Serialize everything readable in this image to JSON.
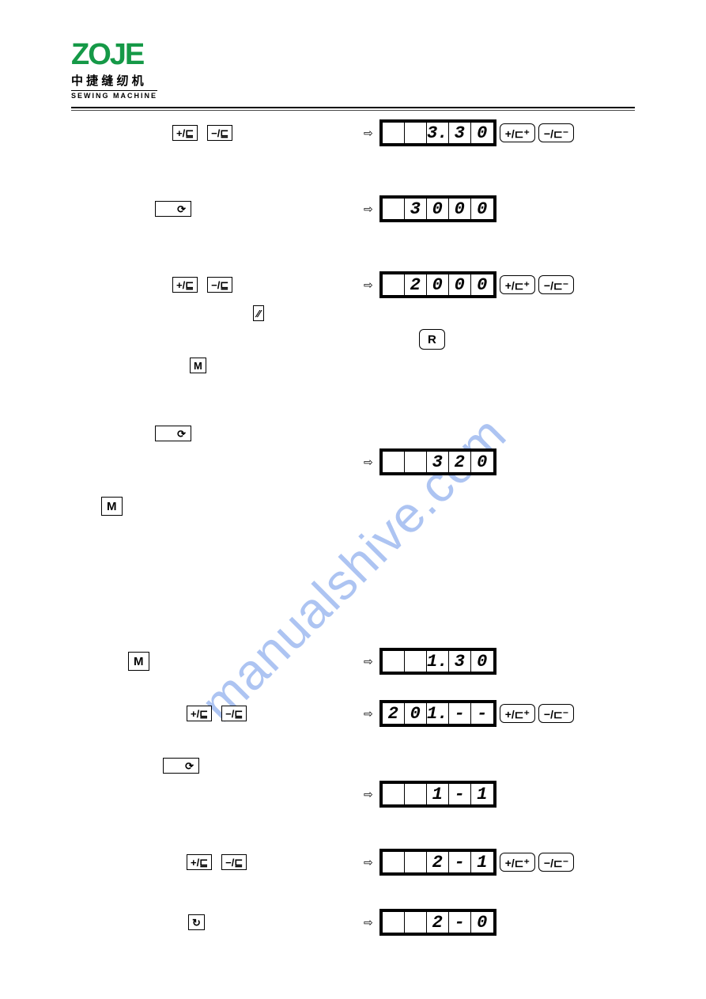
{
  "brand": {
    "name": "ZOJE",
    "color": "#159947",
    "cn": "中 捷 缝 纫 机",
    "en": "SEWING MACHINE"
  },
  "watermark": {
    "text": "manualshive.com",
    "color": "rgba(40,100,220,0.38)"
  },
  "symbols": {
    "plus_small": "+/⊑",
    "minus_small": "−/⊑",
    "plus_btn": "+/⊏⁺",
    "minus_btn": "−/⊏⁻",
    "slash": "⁄⁄",
    "M": "M",
    "R": "R",
    "power": "⟳",
    "reload": "↻",
    "arrow": "⇨"
  },
  "rows": [
    {
      "left_buttons": [
        "plus_small",
        "minus_small"
      ],
      "left_indent": 128,
      "lcd": [
        " ",
        " ",
        "3.",
        "3",
        "0"
      ],
      "right": [
        "plus_btn",
        "minus_btn"
      ]
    },
    {
      "spacer": 60
    },
    {
      "left_buttons_wide": "power",
      "left_indent": 106,
      "lcd": [
        " ",
        "3",
        "0",
        "0",
        "0"
      ],
      "right": []
    },
    {
      "spacer": 60
    },
    {
      "left_buttons": [
        "plus_small",
        "minus_small"
      ],
      "left_indent": 128,
      "lcd": [
        " ",
        "2",
        "0",
        "0",
        "0"
      ],
      "right": [
        "plus_btn",
        "minus_btn"
      ]
    },
    {
      "left_extra_slash": true,
      "left_indent": 230,
      "r_button_below": "R"
    },
    {
      "left_buttons": [
        "M"
      ],
      "left_indent": 150,
      "lcd": null
    },
    {
      "spacer": 50
    },
    {
      "left_buttons_wide": "power",
      "left_indent": 106,
      "lcd": null
    },
    {
      "lcd_only": [
        " ",
        " ",
        "3",
        "2",
        "0"
      ]
    },
    {
      "spacer": 20
    },
    {
      "left_buttons": [
        "M"
      ],
      "left_indent": 38,
      "box_md": true,
      "lcd": null
    },
    {
      "spacer": 160
    },
    {
      "left_buttons": [
        "M"
      ],
      "left_indent": 72,
      "box_md": true,
      "lcd": [
        " ",
        " ",
        "1.",
        "3",
        "0"
      ],
      "right": []
    },
    {
      "spacer": 30
    },
    {
      "left_buttons": [
        "plus_small",
        "minus_small"
      ],
      "left_indent": 146,
      "lcd": [
        "2",
        "0",
        "1.",
        "-",
        "-"
      ],
      "right": [
        "plus_btn",
        "minus_btn"
      ]
    },
    {
      "spacer": 30
    },
    {
      "left_buttons_wide": "power",
      "left_indent": 116,
      "lcd": null
    },
    {
      "lcd_only": [
        " ",
        " ",
        "1",
        "-",
        "1"
      ]
    },
    {
      "spacer": 50
    },
    {
      "left_buttons": [
        "plus_small",
        "minus_small"
      ],
      "left_indent": 146,
      "lcd": [
        " ",
        " ",
        "2",
        "-",
        "1"
      ],
      "right": [
        "plus_btn",
        "minus_btn"
      ]
    },
    {
      "spacer": 40
    },
    {
      "left_buttons_wide": "reload",
      "left_indent": 148,
      "narrow": true,
      "lcd": [
        " ",
        " ",
        "2",
        "-",
        "0"
      ],
      "right": []
    }
  ]
}
